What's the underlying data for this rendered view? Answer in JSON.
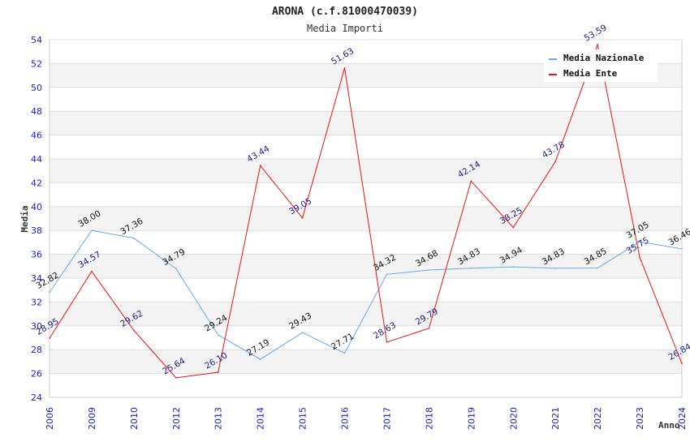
{
  "chart_data": {
    "type": "line",
    "title": "ARONA (c.f.81000470039)",
    "subtitle": "Media Importi",
    "xlabel": "Anno",
    "ylabel": "Media",
    "ylim": [
      24,
      54
    ],
    "yticks": [
      "24",
      "26",
      "28",
      "30",
      "32",
      "34",
      "36",
      "38",
      "40",
      "42",
      "44",
      "46",
      "48",
      "50",
      "52",
      "54"
    ],
    "categories": [
      "2006",
      "2009",
      "2010",
      "2012",
      "2013",
      "2014",
      "2015",
      "2016",
      "2017",
      "2018",
      "2019",
      "2020",
      "2021",
      "2022",
      "2023",
      "2024"
    ],
    "grid": true,
    "legend_position": "top-right",
    "series": [
      {
        "name": "Media Nazionale",
        "color": "#66aaee",
        "label_color": "#111111",
        "values": [
          32.82,
          38.0,
          37.36,
          34.79,
          29.24,
          27.19,
          29.43,
          27.71,
          34.32,
          34.68,
          34.83,
          34.94,
          34.83,
          34.85,
          37.05,
          36.46
        ],
        "labels": [
          "32.82",
          "38.00",
          "37.36",
          "34.79",
          "29.24",
          "27.19",
          "29.43",
          "27.71",
          "34.32",
          "34.68",
          "34.83",
          "34.94",
          "34.83",
          "34.85",
          "37.05",
          "36.46"
        ]
      },
      {
        "name": "Media Ente",
        "color": "#ee1111",
        "label_color": "#1c1c8c",
        "values": [
          28.95,
          34.57,
          29.62,
          25.64,
          26.1,
          43.44,
          39.05,
          51.63,
          28.63,
          29.79,
          42.14,
          38.25,
          43.78,
          53.59,
          35.75,
          26.84
        ],
        "labels": [
          "28.95",
          "34.57",
          "29.62",
          "25.64",
          "26.10",
          "43.44",
          "39.05",
          "51.63",
          "28.63",
          "29.79",
          "42.14",
          "38.25",
          "43.78",
          "53.59",
          "35.75",
          "26.84"
        ]
      }
    ]
  }
}
